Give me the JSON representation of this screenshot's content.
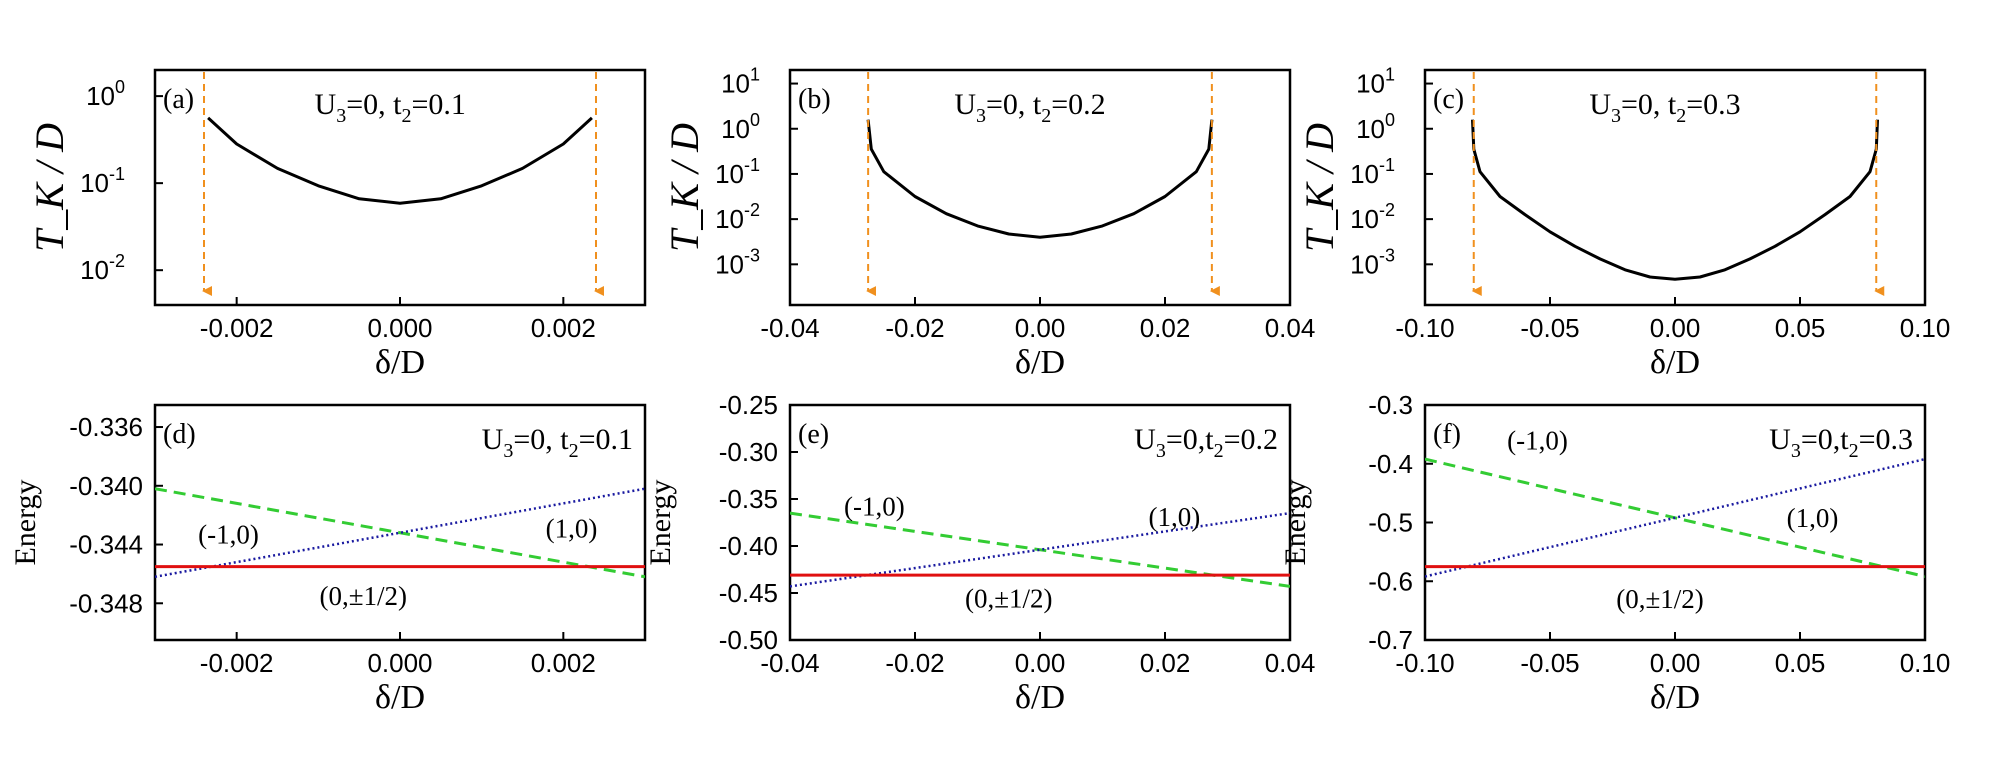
{
  "colors": {
    "frame": "#000000",
    "tk_curve": "#000000",
    "arrow": "#f0901e",
    "state_m10": "#33cc33",
    "state_p10": "#1a1aa0",
    "state_0h": "#e01010"
  },
  "chart_data": [
    {
      "type": "line",
      "panel_label": "(a)",
      "annotation": "U3=0, t2=0.1",
      "ann_u": "U",
      "ann_u_sub": "3",
      "ann_mid": "=0, t",
      "ann_t_sub": "2",
      "ann_tail": "=0.1",
      "xlabel": "δ/D",
      "ylabel": "T_K / D",
      "yscale": "log",
      "xlim": [
        -0.003,
        0.003
      ],
      "ylim_log10": [
        -2.4,
        0.3
      ],
      "xticks": [
        -0.002,
        0.0,
        0.002
      ],
      "xtick_labels": [
        "-0.002",
        "0.000",
        "0.002"
      ],
      "yticks_exp": [
        -2,
        -1,
        0
      ],
      "ytick_base": "10",
      "ytick_exp_labels": [
        "-2",
        "-1",
        "0"
      ],
      "series": [
        {
          "name": "T_K/D",
          "style": "solid",
          "color": "#000000",
          "x": [
            -0.00235,
            -0.002,
            -0.0015,
            -0.001,
            -0.0005,
            0,
            0.0005,
            0.001,
            0.0015,
            0.002,
            0.00235
          ],
          "log10_y": [
            -0.25,
            -0.55,
            -0.83,
            -1.03,
            -1.18,
            -1.23,
            -1.18,
            -1.03,
            -0.83,
            -0.55,
            -0.25
          ]
        }
      ],
      "arrows_x": [
        -0.0024,
        0.0024
      ]
    },
    {
      "type": "line",
      "panel_label": "(b)",
      "annotation": "U3=0, t2=0.2",
      "ann_u": "U",
      "ann_u_sub": "3",
      "ann_mid": "=0, t",
      "ann_t_sub": "2",
      "ann_tail": "=0.2",
      "xlabel": "δ/D",
      "ylabel": "T_K / D",
      "yscale": "log",
      "xlim": [
        -0.04,
        0.04
      ],
      "ylim_log10": [
        -3.9,
        1.3
      ],
      "xticks": [
        -0.04,
        -0.02,
        0.0,
        0.02,
        0.04
      ],
      "xtick_labels": [
        "-0.04",
        "-0.02",
        "0.00",
        "0.02",
        "0.04"
      ],
      "yticks_exp": [
        -3,
        -2,
        -1,
        0,
        1
      ],
      "ytick_base": "10",
      "ytick_exp_labels": [
        "-3",
        "-2",
        "-1",
        "0",
        "1"
      ],
      "series": [
        {
          "name": "T_K/D",
          "style": "solid",
          "color": "#000000",
          "x": [
            -0.0275,
            -0.027,
            -0.025,
            -0.02,
            -0.015,
            -0.01,
            -0.005,
            0,
            0.005,
            0.01,
            0.015,
            0.02,
            0.025,
            0.027,
            0.0275
          ],
          "log10_y": [
            0.2,
            -0.45,
            -0.95,
            -1.5,
            -1.88,
            -2.15,
            -2.33,
            -2.4,
            -2.33,
            -2.15,
            -1.88,
            -1.5,
            -0.95,
            -0.45,
            0.2
          ]
        }
      ],
      "arrows_x": [
        -0.0275,
        0.0275
      ]
    },
    {
      "type": "line",
      "panel_label": "(c)",
      "annotation": "U3=0, t2=0.3",
      "ann_u": "U",
      "ann_u_sub": "3",
      "ann_mid": "=0, t",
      "ann_t_sub": "2",
      "ann_tail": "=0.3",
      "xlabel": "δ/D",
      "ylabel": "T_K / D",
      "yscale": "log",
      "xlim": [
        -0.1,
        0.1
      ],
      "ylim_log10": [
        -3.9,
        1.3
      ],
      "xticks": [
        -0.1,
        -0.05,
        0.0,
        0.05,
        0.1
      ],
      "xtick_labels": [
        "-0.10",
        "-0.05",
        "0.00",
        "0.05",
        "0.10"
      ],
      "yticks_exp": [
        -3,
        -2,
        -1,
        0,
        1
      ],
      "ytick_base": "10",
      "ytick_exp_labels": [
        "-3",
        "-2",
        "-1",
        "0",
        "1"
      ],
      "series": [
        {
          "name": "T_K/D",
          "style": "solid",
          "color": "#000000",
          "x": [
            -0.081,
            -0.0805,
            -0.078,
            -0.07,
            -0.06,
            -0.05,
            -0.04,
            -0.03,
            -0.02,
            -0.01,
            0,
            0.01,
            0.02,
            0.03,
            0.04,
            0.05,
            0.06,
            0.07,
            0.078,
            0.0805,
            0.081
          ],
          "log10_y": [
            0.2,
            -0.45,
            -0.95,
            -1.5,
            -1.9,
            -2.28,
            -2.6,
            -2.88,
            -3.12,
            -3.28,
            -3.33,
            -3.28,
            -3.12,
            -2.88,
            -2.6,
            -2.28,
            -1.9,
            -1.5,
            -0.95,
            -0.45,
            0.2
          ]
        }
      ],
      "arrows_x": [
        -0.0805,
        0.0805
      ]
    },
    {
      "type": "line",
      "panel_label": "(d)",
      "annotation": "U3=0, t2=0.1",
      "ann_u": "U",
      "ann_u_sub": "3",
      "ann_mid": "=0, t",
      "ann_t_sub": "2",
      "ann_tail": "=0.1",
      "xlabel": "δ/D",
      "ylabel": "Energy",
      "yscale": "linear",
      "xlim": [
        -0.003,
        0.003
      ],
      "ylim": [
        -0.3505,
        -0.3345
      ],
      "xticks": [
        -0.002,
        0.0,
        0.002
      ],
      "xtick_labels": [
        "-0.002",
        "0.000",
        "0.002"
      ],
      "yticks": [
        -0.348,
        -0.344,
        -0.34,
        -0.336
      ],
      "ytick_labels": [
        "-0.348",
        "-0.344",
        "-0.340",
        "-0.336"
      ],
      "series": [
        {
          "name": "(-1,0)",
          "style": "dashed",
          "color": "#33cc33",
          "x": [
            -0.003,
            0.003
          ],
          "y": [
            -0.3402,
            -0.3462
          ]
        },
        {
          "name": "(1,0)",
          "style": "dotted",
          "color": "#1a1aa0",
          "x": [
            -0.003,
            0.003
          ],
          "y": [
            -0.3462,
            -0.3402
          ]
        },
        {
          "name": "(0,±1/2)",
          "style": "solid",
          "color": "#e01010",
          "x": [
            -0.003,
            0.003
          ],
          "y": [
            -0.3455,
            -0.3455
          ]
        }
      ],
      "state_labels": [
        {
          "text": "(-1,0)",
          "x": -0.0021,
          "y": -0.3433
        },
        {
          "text": "(1,0)",
          "x": 0.0021,
          "y": -0.3429
        },
        {
          "text": "(0,±1/2)",
          "x": -0.00045,
          "y": -0.3475
        }
      ]
    },
    {
      "type": "line",
      "panel_label": "(e)",
      "annotation": "U3=0,t2=0.2",
      "ann_u": "U",
      "ann_u_sub": "3",
      "ann_mid": "=0,t",
      "ann_t_sub": "2",
      "ann_tail": "=0.2",
      "xlabel": "δ/D",
      "ylabel": "Energy",
      "yscale": "linear",
      "xlim": [
        -0.04,
        0.04
      ],
      "ylim": [
        -0.5,
        -0.25
      ],
      "xticks": [
        -0.04,
        -0.02,
        0.0,
        0.02,
        0.04
      ],
      "xtick_labels": [
        "-0.04",
        "-0.02",
        "0.00",
        "0.02",
        "0.04"
      ],
      "yticks": [
        -0.5,
        -0.45,
        -0.4,
        -0.35,
        -0.3,
        -0.25
      ],
      "ytick_labels": [
        "-0.50",
        "-0.45",
        "-0.40",
        "-0.35",
        "-0.30",
        "-0.25"
      ],
      "series": [
        {
          "name": "(-1,0)",
          "style": "dashed",
          "color": "#33cc33",
          "x": [
            -0.04,
            0.04
          ],
          "y": [
            -0.365,
            -0.443
          ]
        },
        {
          "name": "(1,0)",
          "style": "dotted",
          "color": "#1a1aa0",
          "x": [
            -0.04,
            0.04
          ],
          "y": [
            -0.443,
            -0.365
          ]
        },
        {
          "name": "(0,±1/2)",
          "style": "solid",
          "color": "#e01010",
          "x": [
            -0.04,
            0.04
          ],
          "y": [
            -0.431,
            -0.431
          ]
        }
      ],
      "state_labels": [
        {
          "text": "(-1,0)",
          "x": -0.0265,
          "y": -0.358
        },
        {
          "text": "(1,0)",
          "x": 0.0215,
          "y": -0.369
        },
        {
          "text": "(0,±1/2)",
          "x": -0.005,
          "y": -0.456
        }
      ]
    },
    {
      "type": "line",
      "panel_label": "(f)",
      "annotation": "U3=0,t2=0.3",
      "ann_u": "U",
      "ann_u_sub": "3",
      "ann_mid": "=0,t",
      "ann_t_sub": "2",
      "ann_tail": "=0.3",
      "xlabel": "δ/D",
      "ylabel": "Energy",
      "yscale": "linear",
      "xlim": [
        -0.1,
        0.1
      ],
      "ylim": [
        -0.7,
        -0.3
      ],
      "xticks": [
        -0.1,
        -0.05,
        0.0,
        0.05,
        0.1
      ],
      "xtick_labels": [
        "-0.10",
        "-0.05",
        "0.00",
        "0.05",
        "0.10"
      ],
      "yticks": [
        -0.7,
        -0.6,
        -0.5,
        -0.4,
        -0.3
      ],
      "ytick_labels": [
        "-0.7",
        "-0.6",
        "-0.5",
        "-0.4",
        "-0.3"
      ],
      "series": [
        {
          "name": "(-1,0)",
          "style": "dashed",
          "color": "#33cc33",
          "x": [
            -0.1,
            0.1
          ],
          "y": [
            -0.392,
            -0.592
          ]
        },
        {
          "name": "(1,0)",
          "style": "dotted",
          "color": "#1a1aa0",
          "x": [
            -0.1,
            0.1
          ],
          "y": [
            -0.592,
            -0.392
          ]
        },
        {
          "name": "(0,±1/2)",
          "style": "solid",
          "color": "#e01010",
          "x": [
            -0.1,
            0.1
          ],
          "y": [
            -0.575,
            -0.575
          ]
        }
      ],
      "state_labels": [
        {
          "text": "(-1,0)",
          "x": -0.055,
          "y": -0.36
        },
        {
          "text": "(1,0)",
          "x": 0.055,
          "y": -0.492
        },
        {
          "text": "(0,±1/2)",
          "x": -0.006,
          "y": -0.63
        }
      ]
    }
  ]
}
